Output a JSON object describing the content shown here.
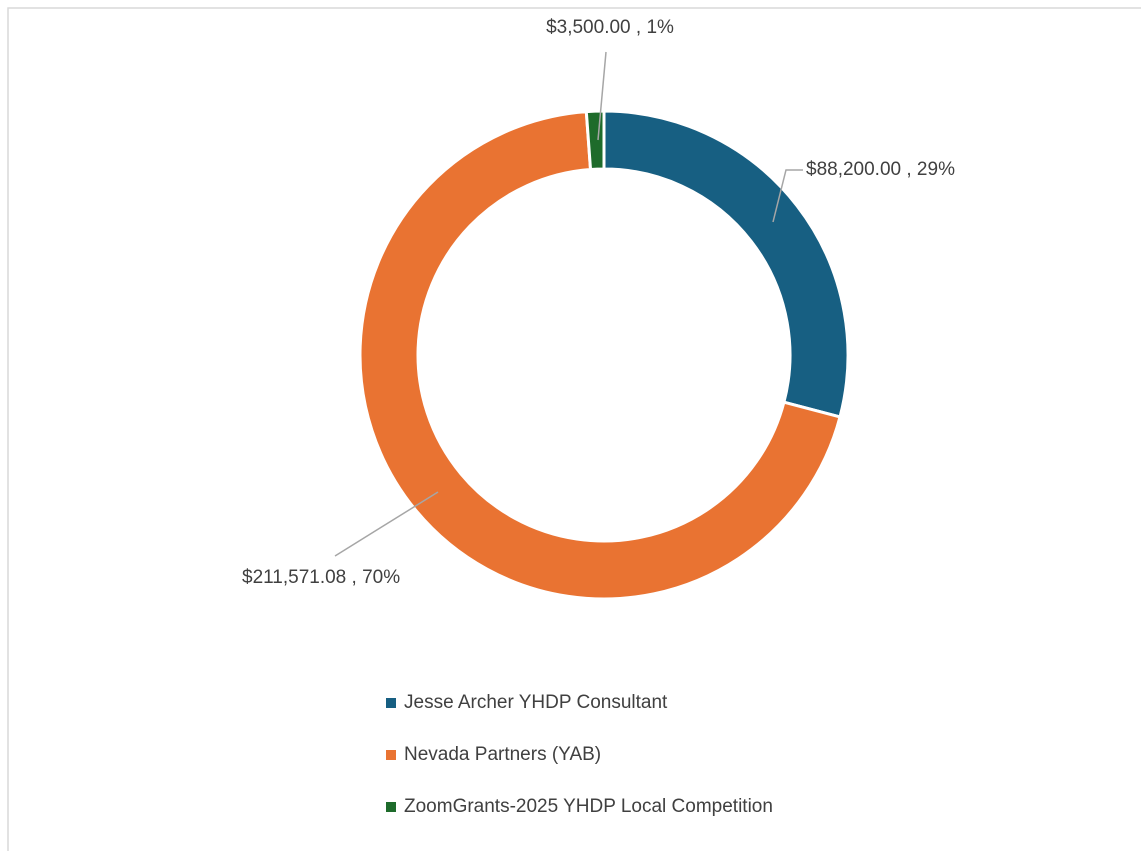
{
  "chart_data": {
    "type": "donut",
    "categories": [
      "Jesse Archer YHDP Consultant",
      "Nevada Partners (YAB)",
      "ZoomGrants-2025 YHDP Local Competition"
    ],
    "values": [
      88200,
      211571.08,
      3500
    ],
    "value_labels": [
      "$88,200.00 , 29%",
      "$211,571.08 , 70%",
      "$3,500.00 , 1%"
    ],
    "colors": [
      "#175f82",
      "#e97332",
      "#1e6b2b"
    ],
    "legend": "bottom"
  }
}
